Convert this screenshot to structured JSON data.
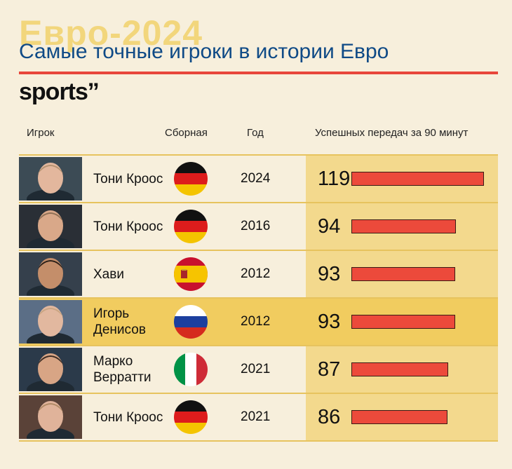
{
  "background_title": "Евро-2024",
  "title": "Самые точные игроки в истории Евро",
  "brand": "sports’’",
  "headers": {
    "player": "Игрок",
    "team": "Сборная",
    "year": "Год",
    "passes": "Успешных передач за 90 минут"
  },
  "colors": {
    "accent": "#e8473b",
    "title": "#0f4a86",
    "background": "#f7efdc",
    "highlight": "#f1cc5f",
    "bar": "#ec4a3b"
  },
  "chart_data": {
    "type": "bar",
    "orientation": "horizontal",
    "title": "Самые точные игроки в истории Евро",
    "ylabel": "Успешных передач за 90 минут",
    "xlim": [
      0,
      119
    ],
    "grid": false,
    "highlighted_row": 3,
    "rows": [
      {
        "player": "Тони Кроос",
        "team": "Germany",
        "flag": "deu",
        "year": "2024",
        "value": 119
      },
      {
        "player": "Тони Кроос",
        "team": "Germany",
        "flag": "deu",
        "year": "2016",
        "value": 94
      },
      {
        "player": "Хави",
        "team": "Spain",
        "flag": "esp",
        "year": "2012",
        "value": 93
      },
      {
        "player": "Игорь Денисов",
        "team": "Russia",
        "flag": "rus",
        "year": "2012",
        "value": 93
      },
      {
        "player": "Марко Верратти",
        "team": "Italy",
        "flag": "ita",
        "year": "2021",
        "value": 87
      },
      {
        "player": "Тони Кроос",
        "team": "Germany",
        "flag": "deu",
        "year": "2021",
        "value": 86
      }
    ]
  }
}
